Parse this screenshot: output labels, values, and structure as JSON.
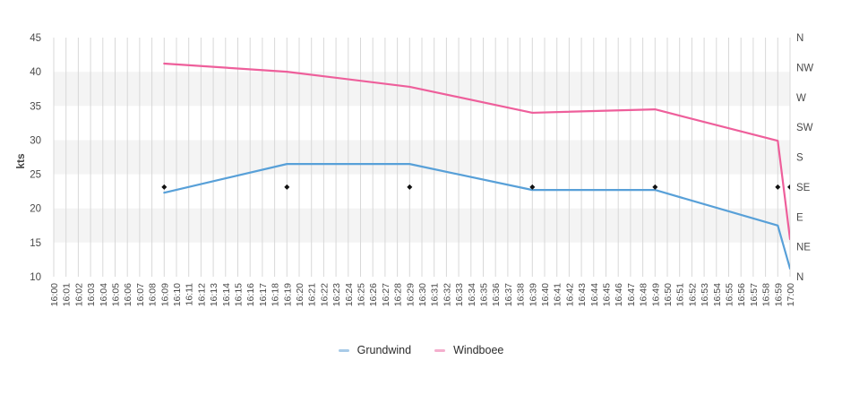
{
  "chart_data": {
    "type": "line",
    "title": "",
    "ylabel": "kts",
    "grid": true,
    "legend_position": "bottom-center",
    "y_axis": {
      "min": 10,
      "max": 45,
      "ticks": [
        45,
        40,
        35,
        30,
        25,
        20,
        15,
        10
      ]
    },
    "x_axis": {
      "tick_labels": [
        "16:00",
        "16:01",
        "16:02",
        "16:03",
        "16:04",
        "16:05",
        "16:06",
        "16:07",
        "16:08",
        "16:09",
        "16:10",
        "16:11",
        "16:12",
        "16:13",
        "16:14",
        "16:15",
        "16:16",
        "16:17",
        "16:18",
        "16:19",
        "16:20",
        "16:21",
        "16:22",
        "16:23",
        "16:24",
        "16:25",
        "16:26",
        "16:27",
        "16:28",
        "16:29",
        "16:30",
        "16:31",
        "16:32",
        "16:33",
        "16:34",
        "16:35",
        "16:36",
        "16:37",
        "16:38",
        "16:39",
        "16:40",
        "16:41",
        "16:42",
        "16:43",
        "16:44",
        "16:45",
        "16:46",
        "16:47",
        "16:48",
        "16:49",
        "16:50",
        "16:51",
        "16:52",
        "16:53",
        "16:54",
        "16:55",
        "16:56",
        "16:57",
        "16:58",
        "16:59",
        "17:00"
      ]
    },
    "right_axis": {
      "labels": [
        "N",
        "NW",
        "W",
        "SW",
        "S",
        "SE",
        "E",
        "NE",
        "N"
      ]
    },
    "series": [
      {
        "name": "Grundwind",
        "color": "#58a0d8",
        "legend_color": "#a8cbe8",
        "x": [
          "16:09",
          "16:19",
          "16:29",
          "16:39",
          "16:49",
          "16:59",
          "17:00"
        ],
        "values": [
          22.3,
          26.5,
          26.5,
          22.7,
          22.7,
          17.5,
          11.2
        ]
      },
      {
        "name": "Windboee",
        "color": "#ee5f9b",
        "legend_color": "#f4afce",
        "x": [
          "16:09",
          "16:19",
          "16:29",
          "16:39",
          "16:49",
          "16:59",
          "17:00"
        ],
        "values": [
          41.2,
          40.0,
          37.8,
          34.0,
          34.5,
          29.9,
          15.5
        ]
      }
    ],
    "direction_markers": {
      "symbol": "diamond",
      "color": "#111111",
      "direction": "SE",
      "times": [
        "16:09",
        "16:19",
        "16:29",
        "16:39",
        "16:49",
        "16:59",
        "17:00"
      ]
    },
    "colors": {
      "band_fill": "#f4f4f4",
      "grid_line": "#d8d8d8",
      "axis_text": "#4a4a4a"
    }
  },
  "legend": {
    "items": [
      {
        "label": "Grundwind"
      },
      {
        "label": "Windboee"
      }
    ]
  }
}
